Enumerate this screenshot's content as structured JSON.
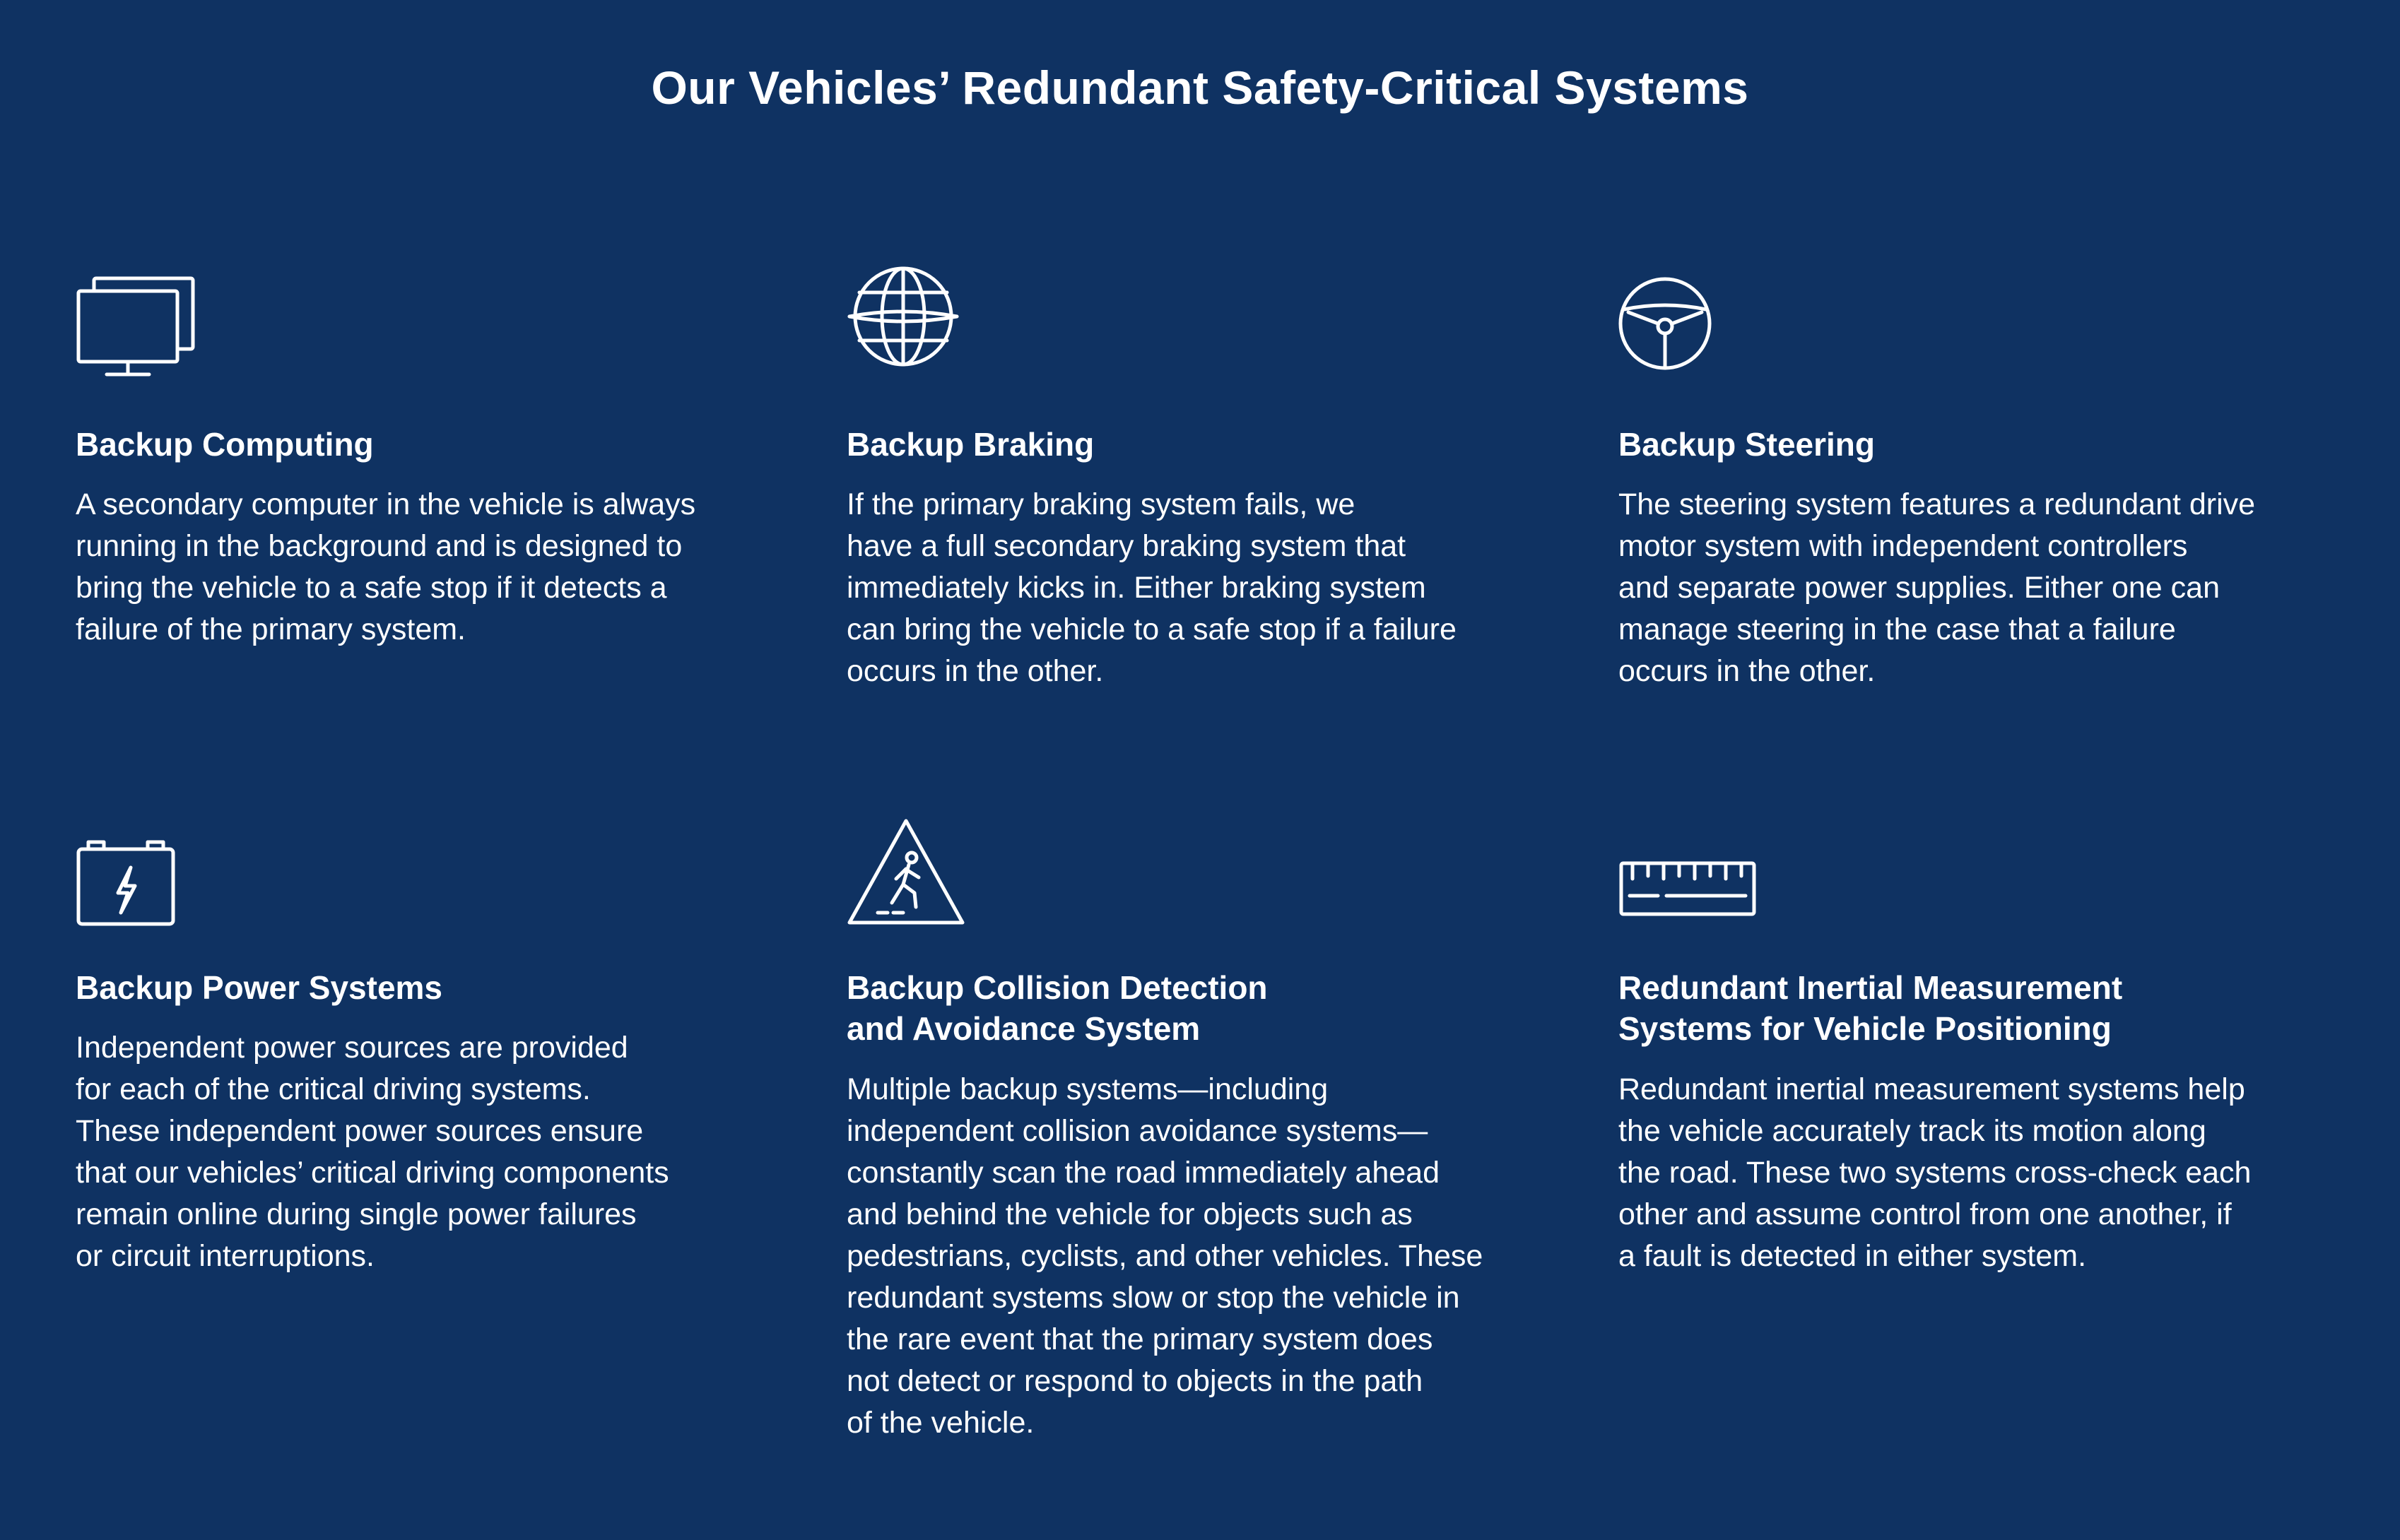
{
  "page": {
    "title": "Our Vehicles’ Redundant Safety-Critical Systems"
  },
  "cards": [
    {
      "icon": "computer-monitors-icon",
      "title": "Backup Computing",
      "text": "A secondary computer in the vehicle is always\nrunning in the background and is designed to\nbring the vehicle to a safe stop if it detects a\nfailure of the primary system."
    },
    {
      "icon": "globe-icon",
      "title": "Backup Braking",
      "text": "If the primary braking system fails, we\nhave a full secondary braking system that\nimmediately kicks in. Either braking system\ncan bring the vehicle to a safe stop if a failure\noccurs in the other."
    },
    {
      "icon": "steering-wheel-icon",
      "title": "Backup Steering",
      "text": "The steering system features a redundant drive\nmotor system with independent controllers\nand separate power supplies. Either one can\nmanage steering in the case that a failure\noccurs in the other."
    },
    {
      "icon": "battery-icon",
      "title": "Backup Power Systems",
      "text": "Independent power sources are provided\nfor each of the critical driving systems.\nThese independent power sources ensure\nthat our vehicles’ critical driving components\nremain online during single power failures\nor circuit interruptions."
    },
    {
      "icon": "pedestrian-warning-icon",
      "title": "Backup Collision Detection\nand Avoidance System",
      "text": "Multiple backup systems—including\nindependent collision avoidance systems—\nconstantly scan the road immediately ahead\nand behind the vehicle for objects such as\npedestrians, cyclists, and other vehicles. These\nredundant systems slow or stop the vehicle in\nthe rare event that the primary system does\nnot detect or respond to objects in the path\nof the vehicle."
    },
    {
      "icon": "ruler-icon",
      "title": "Redundant Inertial Measurement\nSystems for Vehicle Positioning",
      "text": "Redundant inertial measurement systems help\nthe vehicle accurately track its motion along\nthe road. These two systems cross-check each\nother and assume control from one another, if\na fault is detected in either system."
    }
  ]
}
